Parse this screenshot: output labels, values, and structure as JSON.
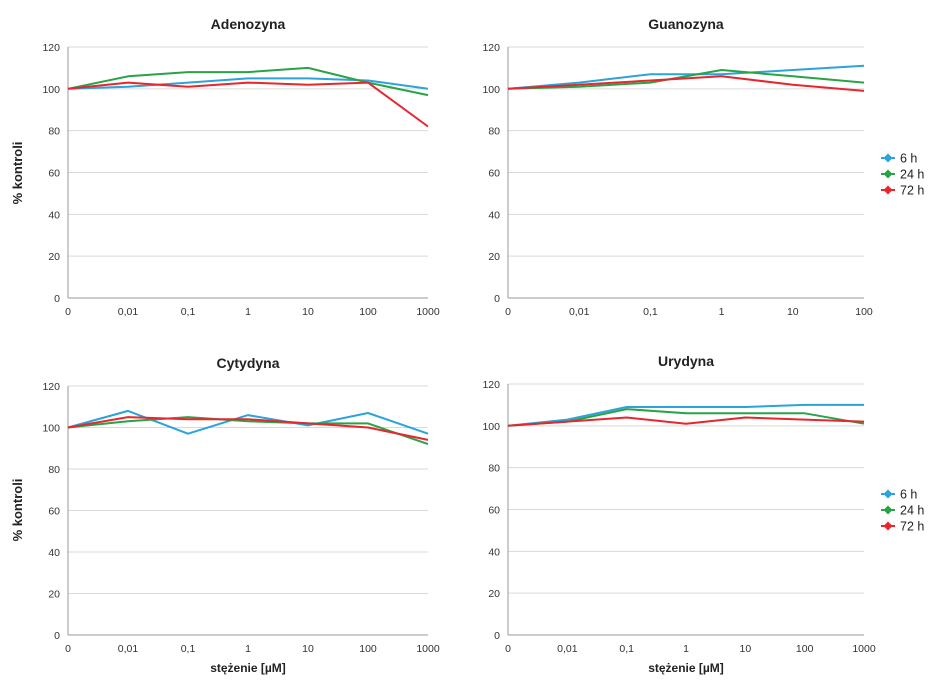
{
  "colors": {
    "6 h": "#2BA3DB",
    "24 h": "#29A347",
    "72 h": "#E8262E"
  },
  "chart_data": [
    {
      "type": "line",
      "title": "Adenozyna",
      "ylabel": "% kontroli",
      "xlabel": "",
      "categories": [
        "0",
        "0,01",
        "0,1",
        "1",
        "10",
        "100",
        "1000"
      ],
      "yticks": [
        "0",
        "20",
        "40",
        "60",
        "80",
        "100",
        "120"
      ],
      "ylim": [
        0,
        120
      ],
      "grid": true,
      "series": [
        {
          "name": "6 h",
          "values": [
            100,
            101,
            103,
            105,
            105,
            104,
            100
          ]
        },
        {
          "name": "24 h",
          "values": [
            100,
            106,
            108,
            108,
            110,
            103,
            97
          ]
        },
        {
          "name": "72 h",
          "values": [
            100,
            103,
            101,
            103,
            102,
            103,
            82
          ]
        }
      ]
    },
    {
      "type": "line",
      "title": "Guanozyna",
      "ylabel": "",
      "xlabel": "",
      "categories": [
        "0",
        "0,01",
        "0,1",
        "1",
        "10",
        "100"
      ],
      "yticks": [
        "0",
        "20",
        "40",
        "60",
        "80",
        "100",
        "120"
      ],
      "ylim": [
        0,
        120
      ],
      "grid": true,
      "series": [
        {
          "name": "6 h",
          "values": [
            100,
            103,
            107,
            107,
            109,
            111
          ]
        },
        {
          "name": "24 h",
          "values": [
            100,
            101,
            103,
            109,
            106,
            103
          ]
        },
        {
          "name": "72 h",
          "values": [
            100,
            102,
            104,
            106,
            102,
            99
          ]
        }
      ]
    },
    {
      "type": "line",
      "title": "Cytydyna",
      "ylabel": "% kontroli",
      "xlabel": "stężenie [µM]",
      "categories": [
        "0",
        "0,01",
        "0,1",
        "1",
        "10",
        "100",
        "1000"
      ],
      "yticks": [
        "0",
        "20",
        "40",
        "60",
        "80",
        "100",
        "120"
      ],
      "ylim": [
        0,
        120
      ],
      "grid": true,
      "series": [
        {
          "name": "6 h",
          "values": [
            100,
            108,
            97,
            106,
            101,
            107,
            97
          ]
        },
        {
          "name": "24 h",
          "values": [
            100,
            103,
            105,
            103,
            102,
            102,
            92
          ]
        },
        {
          "name": "72 h",
          "values": [
            100,
            105,
            104,
            104,
            102,
            100,
            94
          ]
        }
      ]
    },
    {
      "type": "line",
      "title": "Urydyna",
      "ylabel": "",
      "xlabel": "stężenie [µM]",
      "categories": [
        "0",
        "0,01",
        "0,1",
        "1",
        "10",
        "100",
        "1000"
      ],
      "yticks": [
        "0",
        "20",
        "40",
        "60",
        "80",
        "100",
        "120"
      ],
      "ylim": [
        0,
        120
      ],
      "grid": true,
      "series": [
        {
          "name": "6 h",
          "values": [
            100,
            103,
            109,
            109,
            109,
            110,
            110
          ]
        },
        {
          "name": "24 h",
          "values": [
            100,
            102,
            108,
            106,
            106,
            106,
            101
          ]
        },
        {
          "name": "72 h",
          "values": [
            100,
            102,
            104,
            101,
            104,
            103,
            102
          ]
        }
      ]
    }
  ],
  "legends": [
    {
      "items": [
        "6 h",
        "24 h",
        "72 h"
      ]
    },
    {
      "items": [
        "6 h",
        "24 h",
        "72 h"
      ]
    }
  ]
}
